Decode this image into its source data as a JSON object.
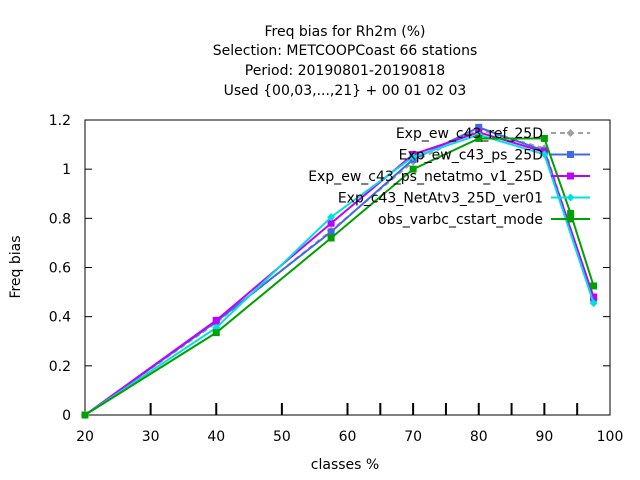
{
  "chart_data": {
    "type": "line",
    "title_lines": [
      "Freq bias  for Rh2m (%)",
      "Selection: METCOOPCoast     66 stations",
      "Period: 20190801-20190818",
      "Used {00,03,...,21} + 00 01 02 03"
    ],
    "xlabel": "classes %",
    "ylabel": "Freq bias",
    "xlim": [
      20,
      100
    ],
    "ylim": [
      0,
      1.2
    ],
    "xticks": [
      20,
      30,
      40,
      50,
      60,
      70,
      80,
      90,
      100
    ],
    "yticks": [
      0,
      0.2,
      0.4,
      0.6,
      0.8,
      1,
      1.2
    ],
    "ytick_labels": [
      "0",
      "0.2",
      "0.4",
      "0.6",
      "0.8",
      "1",
      "1.2"
    ],
    "inner_ticks_x": [
      30,
      40,
      50,
      60,
      65,
      70,
      75,
      80,
      85,
      90,
      95
    ],
    "grid": false,
    "legend_position": "top-right",
    "series": [
      {
        "name": "Exp_ew_c43_ref_25D",
        "color": "#a0a0a0",
        "dashed": true,
        "marker": "diamond",
        "x": [
          20,
          40,
          57.5,
          70,
          80,
          90,
          97.5
        ],
        "y": [
          0,
          0.375,
          0.75,
          1.03,
          1.16,
          1.085,
          0.47
        ]
      },
      {
        "name": "Exp_ew_c43_ps_25D",
        "color": "#4169e1",
        "dashed": false,
        "marker": "square",
        "x": [
          20,
          40,
          57.5,
          70,
          80,
          90,
          97.5
        ],
        "y": [
          0,
          0.38,
          0.745,
          1.04,
          1.17,
          1.075,
          0.475
        ]
      },
      {
        "name": "Exp_ew_c43_ps_netatmo_v1_25D",
        "color": "#c000ff",
        "dashed": false,
        "marker": "square",
        "x": [
          20,
          40,
          57.5,
          70,
          80,
          90,
          97.5
        ],
        "y": [
          0,
          0.385,
          0.78,
          1.06,
          1.15,
          1.07,
          0.48
        ]
      },
      {
        "name": "Exp_c43_NetAtv3_25D_ver01",
        "color": "#00e0e0",
        "dashed": false,
        "marker": "diamond",
        "x": [
          20,
          40,
          57.5,
          70,
          80,
          90,
          97.5
        ],
        "y": [
          0,
          0.355,
          0.805,
          1.05,
          1.14,
          1.06,
          0.455
        ]
      },
      {
        "name": "obs_varbc_cstart_mode",
        "color": "#00a000",
        "dashed": false,
        "marker": "square",
        "x": [
          20,
          40,
          57.5,
          70,
          80,
          90,
          94,
          97.5
        ],
        "y": [
          0,
          0.335,
          0.72,
          1.0,
          1.125,
          1.125,
          0.82,
          0.525
        ]
      }
    ]
  }
}
